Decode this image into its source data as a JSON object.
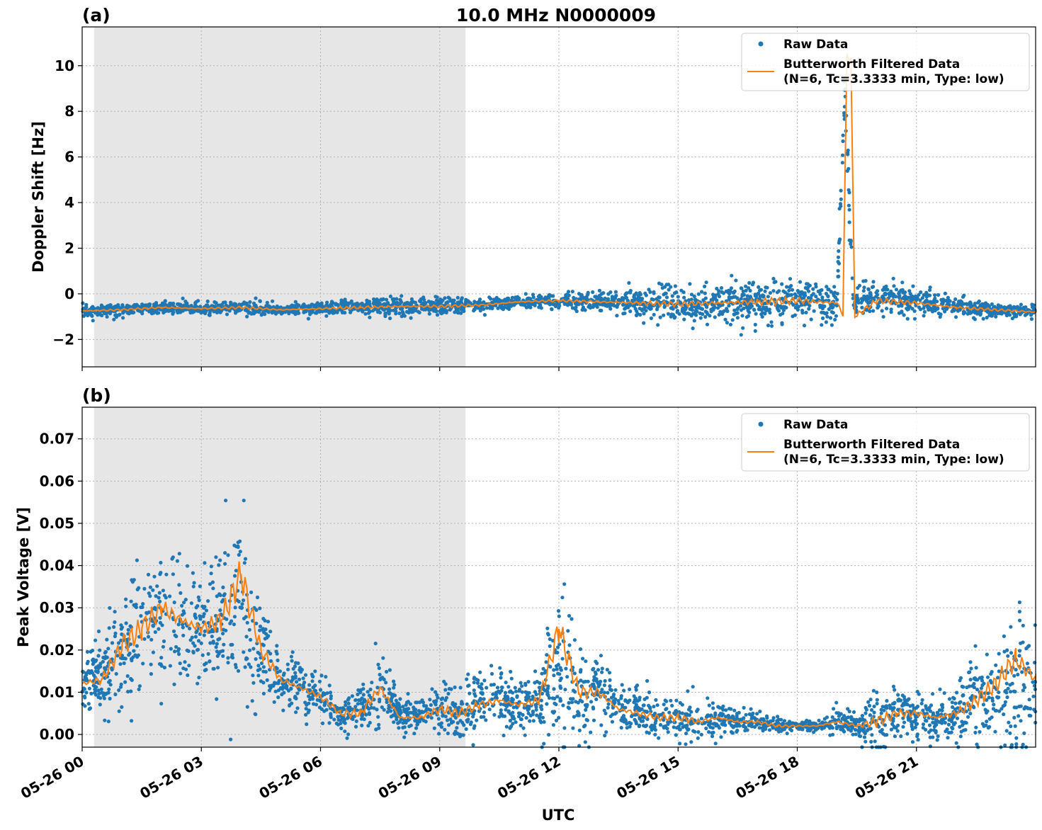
{
  "chart_data": [
    {
      "type": "scatter",
      "panel_label": "(a)",
      "title": "10.0 MHz N0000009",
      "xlabel": "",
      "ylabel": "Doppler Shift [Hz]",
      "xlim_hours": [
        0,
        24
      ],
      "ylim": [
        -3.2,
        11.7
      ],
      "yticks": [
        -2,
        0,
        2,
        4,
        6,
        8,
        10
      ],
      "ytick_labels": [
        "−2",
        "0",
        "2",
        "4",
        "6",
        "8",
        "10"
      ],
      "grid": true,
      "legend_position": "top-right",
      "shaded_region_hours": [
        0.3,
        9.65
      ],
      "colors": {
        "raw": "#1f77b4",
        "filtered": "#ff7f0e",
        "shade": "#e6e6e6"
      },
      "series": [
        {
          "name": "Raw Data",
          "style": "points",
          "x_hours": [
            0,
            1,
            2,
            3,
            4,
            5,
            6,
            7,
            8,
            9,
            10,
            11,
            12,
            13,
            14,
            15,
            16,
            17,
            18,
            19,
            19.2,
            19.4,
            20,
            21,
            22,
            23,
            24
          ],
          "center": [
            -0.75,
            -0.7,
            -0.6,
            -0.65,
            -0.6,
            -0.7,
            -0.65,
            -0.6,
            -0.55,
            -0.55,
            -0.5,
            -0.35,
            -0.3,
            -0.35,
            -0.4,
            -0.45,
            -0.4,
            -0.35,
            -0.3,
            -0.4,
            9.0,
            -0.3,
            -0.2,
            -0.3,
            -0.6,
            -0.7,
            -0.8
          ],
          "spread": [
            0.25,
            0.25,
            0.25,
            0.3,
            0.3,
            0.25,
            0.25,
            0.35,
            0.45,
            0.35,
            0.3,
            0.25,
            0.3,
            0.4,
            0.6,
            0.7,
            0.8,
            0.9,
            0.9,
            0.8,
            1.5,
            0.8,
            0.7,
            0.6,
            0.4,
            0.3,
            0.3
          ]
        },
        {
          "name": "Butterworth Filtered Data\n(N=6, Tc=3.3333 min, Type: low)",
          "legend_lines": [
            "Butterworth Filtered Data",
            "(N=6, Tc=3.3333 min, Type: low)"
          ],
          "style": "line",
          "x_hours": [
            0,
            1,
            2,
            3,
            4,
            5,
            6,
            7,
            8,
            9,
            10,
            11,
            12,
            13,
            14,
            15,
            16,
            17,
            18,
            19,
            19.15,
            19.25,
            19.35,
            19.45,
            20,
            21,
            22,
            23,
            24
          ],
          "y": [
            -0.75,
            -0.7,
            -0.6,
            -0.65,
            -0.6,
            -0.7,
            -0.65,
            -0.6,
            -0.55,
            -0.55,
            -0.5,
            -0.35,
            -0.3,
            -0.35,
            -0.4,
            -0.45,
            -0.4,
            -0.35,
            -0.3,
            -0.4,
            -0.9,
            10.5,
            10.3,
            -1.0,
            -0.3,
            -0.4,
            -0.6,
            -0.7,
            -0.8
          ]
        }
      ]
    },
    {
      "type": "scatter",
      "panel_label": "(b)",
      "title": "",
      "xlabel": "UTC",
      "ylabel": "Peak Voltage [V]",
      "xlim_hours": [
        0,
        24
      ],
      "ylim": [
        -0.003,
        0.0775
      ],
      "yticks": [
        0.0,
        0.01,
        0.02,
        0.03,
        0.04,
        0.05,
        0.06,
        0.07
      ],
      "ytick_labels": [
        "0.00",
        "0.01",
        "0.02",
        "0.03",
        "0.04",
        "0.05",
        "0.06",
        "0.07"
      ],
      "xticks_hours": [
        0,
        3,
        6,
        9,
        12,
        15,
        18,
        21
      ],
      "xtick_labels": [
        "05-26 00",
        "05-26 03",
        "05-26 06",
        "05-26 09",
        "05-26 12",
        "05-26 15",
        "05-26 18",
        "05-26 21"
      ],
      "grid": true,
      "legend_position": "top-right",
      "shaded_region_hours": [
        0.3,
        9.65
      ],
      "colors": {
        "raw": "#1f77b4",
        "filtered": "#ff7f0e",
        "shade": "#e6e6e6"
      },
      "series": [
        {
          "name": "Raw Data",
          "style": "points",
          "x_hours": [
            0,
            0.5,
            1,
            1.5,
            2,
            2.5,
            3,
            3.5,
            4,
            4.5,
            5,
            5.5,
            6,
            6.5,
            7,
            7.5,
            8,
            8.5,
            9,
            9.5,
            10,
            10.5,
            11,
            11.5,
            12,
            12.5,
            13,
            13.5,
            14,
            14.5,
            15,
            15.5,
            16,
            16.5,
            17,
            17.5,
            18,
            18.5,
            19,
            19.5,
            20,
            20.5,
            21,
            21.5,
            22,
            22.5,
            23,
            23.5,
            24
          ],
          "center": [
            0.012,
            0.014,
            0.02,
            0.025,
            0.027,
            0.026,
            0.025,
            0.028,
            0.032,
            0.02,
            0.013,
            0.011,
            0.009,
            0.005,
            0.006,
            0.01,
            0.005,
            0.004,
            0.006,
            0.005,
            0.007,
            0.008,
            0.007,
            0.008,
            0.015,
            0.01,
            0.01,
            0.006,
            0.005,
            0.004,
            0.004,
            0.003,
            0.004,
            0.003,
            0.003,
            0.002,
            0.002,
            0.002,
            0.003,
            0.002,
            0.003,
            0.005,
            0.005,
            0.004,
            0.005,
            0.008,
            0.01,
            0.012,
            0.011
          ],
          "spread": [
            0.008,
            0.01,
            0.014,
            0.016,
            0.016,
            0.015,
            0.015,
            0.018,
            0.022,
            0.012,
            0.008,
            0.006,
            0.005,
            0.004,
            0.006,
            0.008,
            0.004,
            0.004,
            0.006,
            0.006,
            0.007,
            0.007,
            0.006,
            0.007,
            0.02,
            0.01,
            0.01,
            0.005,
            0.005,
            0.004,
            0.005,
            0.004,
            0.004,
            0.003,
            0.002,
            0.002,
            0.001,
            0.001,
            0.004,
            0.002,
            0.008,
            0.006,
            0.006,
            0.004,
            0.008,
            0.01,
            0.012,
            0.018,
            0.014
          ]
        },
        {
          "name": "Butterworth Filtered Data\n(N=6, Tc=3.3333 min, Type: low)",
          "legend_lines": [
            "Butterworth Filtered Data",
            "(N=6, Tc=3.3333 min, Type: low)"
          ],
          "style": "line",
          "x_hours": [
            0,
            0.5,
            1,
            1.5,
            2,
            2.5,
            3,
            3.5,
            4,
            4.5,
            5,
            5.5,
            6,
            6.5,
            7,
            7.5,
            8,
            8.5,
            9,
            9.5,
            10,
            10.5,
            11,
            11.5,
            12,
            12.5,
            13,
            13.5,
            14,
            14.5,
            15,
            15.5,
            16,
            16.5,
            17,
            17.5,
            18,
            18.5,
            19,
            19.5,
            20,
            20.5,
            21,
            21.5,
            22,
            22.5,
            23,
            23.5,
            24
          ],
          "y": [
            0.012,
            0.013,
            0.021,
            0.025,
            0.03,
            0.027,
            0.025,
            0.027,
            0.038,
            0.02,
            0.013,
            0.011,
            0.009,
            0.005,
            0.005,
            0.011,
            0.004,
            0.004,
            0.006,
            0.005,
            0.007,
            0.008,
            0.007,
            0.008,
            0.025,
            0.01,
            0.01,
            0.006,
            0.005,
            0.004,
            0.004,
            0.003,
            0.004,
            0.003,
            0.003,
            0.002,
            0.002,
            0.002,
            0.003,
            0.002,
            0.003,
            0.005,
            0.005,
            0.004,
            0.005,
            0.008,
            0.012,
            0.018,
            0.013
          ]
        }
      ]
    }
  ]
}
